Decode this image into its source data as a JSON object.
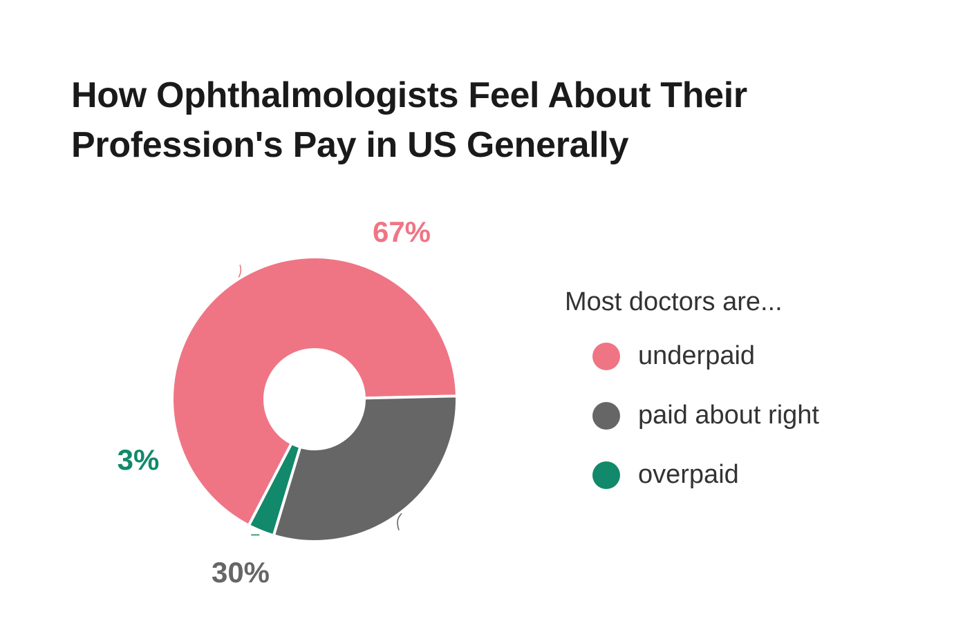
{
  "title_lines": [
    "How Ophthalmologists Feel About Their",
    "Profession's Pay in US Generally"
  ],
  "legend": {
    "title": "Most doctors are..."
  },
  "chart_data": {
    "type": "pie",
    "variant": "donut",
    "title": "How Ophthalmologists Feel About Their Profession's Pay in US Generally",
    "legend_placement": "right",
    "slices": [
      {
        "name": "underpaid",
        "value": 67,
        "label": "67%",
        "color": "#ef7585"
      },
      {
        "name": "paid about right",
        "value": 30,
        "label": "30%",
        "color": "#666666"
      },
      {
        "name": "overpaid",
        "value": 3,
        "label": "3%",
        "color": "#11896a"
      }
    ]
  }
}
